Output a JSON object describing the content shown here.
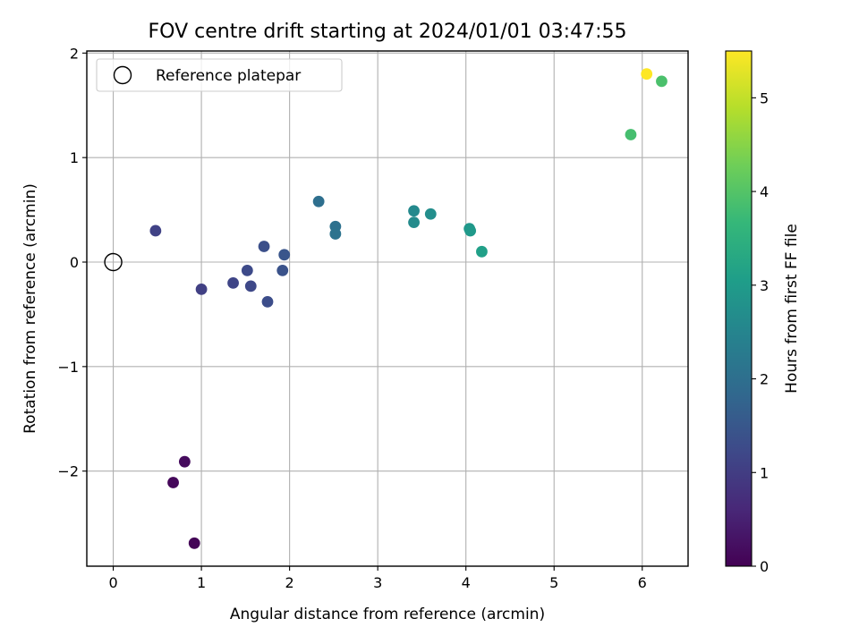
{
  "chart_data": {
    "type": "scatter",
    "title": "FOV centre drift starting at 2024/01/01 03:47:55",
    "xlabel": "Angular distance from reference (arcmin)",
    "ylabel": "Rotation from reference (arcmin)",
    "xlim": [
      -0.3,
      6.52
    ],
    "ylim": [
      -2.91,
      2.02
    ],
    "xticks": [
      0,
      1,
      2,
      3,
      4,
      5,
      6
    ],
    "xtick_labels": [
      "0",
      "1",
      "2",
      "3",
      "4",
      "5",
      "6"
    ],
    "yticks": [
      -2,
      -1,
      0,
      1,
      2
    ],
    "ytick_labels": [
      "−2",
      "−1",
      "0",
      "1",
      "2"
    ],
    "grid": true,
    "legend": {
      "position": "top-left",
      "entries": [
        "Reference platepar"
      ]
    },
    "reference_point": {
      "x": 0,
      "y": 0
    },
    "colorbar": {
      "label": "Hours from first FF file",
      "range": [
        0,
        5.5
      ],
      "ticks": [
        0,
        1,
        2,
        3,
        4,
        5
      ],
      "tick_labels": [
        "0",
        "1",
        "2",
        "3",
        "4",
        "5"
      ],
      "colormap": "viridis",
      "colormap_stops": [
        "#440154",
        "#482878",
        "#3e4989",
        "#31688e",
        "#26828e",
        "#1f9e89",
        "#35b779",
        "#6ece58",
        "#b5de2b",
        "#fde725"
      ]
    },
    "points": [
      {
        "x": 0.92,
        "y": -2.69,
        "t": 0.05
      },
      {
        "x": 0.68,
        "y": -2.11,
        "t": 0.1
      },
      {
        "x": 0.81,
        "y": -1.91,
        "t": 0.15
      },
      {
        "x": 0.48,
        "y": 0.3,
        "t": 1.1
      },
      {
        "x": 1.0,
        "y": -0.26,
        "t": 1.05
      },
      {
        "x": 1.36,
        "y": -0.2,
        "t": 1.15
      },
      {
        "x": 1.56,
        "y": -0.23,
        "t": 1.2
      },
      {
        "x": 1.52,
        "y": -0.08,
        "t": 1.25
      },
      {
        "x": 1.75,
        "y": -0.38,
        "t": 1.3
      },
      {
        "x": 1.71,
        "y": 0.15,
        "t": 1.35
      },
      {
        "x": 1.92,
        "y": -0.08,
        "t": 1.4
      },
      {
        "x": 1.94,
        "y": 0.07,
        "t": 1.45
      },
      {
        "x": 2.33,
        "y": 0.58,
        "t": 2.0
      },
      {
        "x": 2.52,
        "y": 0.34,
        "t": 2.05
      },
      {
        "x": 2.52,
        "y": 0.27,
        "t": 2.1
      },
      {
        "x": 3.41,
        "y": 0.49,
        "t": 2.6
      },
      {
        "x": 3.41,
        "y": 0.38,
        "t": 2.65
      },
      {
        "x": 3.6,
        "y": 0.46,
        "t": 2.7
      },
      {
        "x": 4.04,
        "y": 0.32,
        "t": 2.9
      },
      {
        "x": 4.05,
        "y": 0.3,
        "t": 2.95
      },
      {
        "x": 4.18,
        "y": 0.1,
        "t": 3.1
      },
      {
        "x": 5.87,
        "y": 1.22,
        "t": 3.85
      },
      {
        "x": 6.22,
        "y": 1.73,
        "t": 3.9
      },
      {
        "x": 6.05,
        "y": 1.8,
        "t": 5.5
      }
    ]
  }
}
